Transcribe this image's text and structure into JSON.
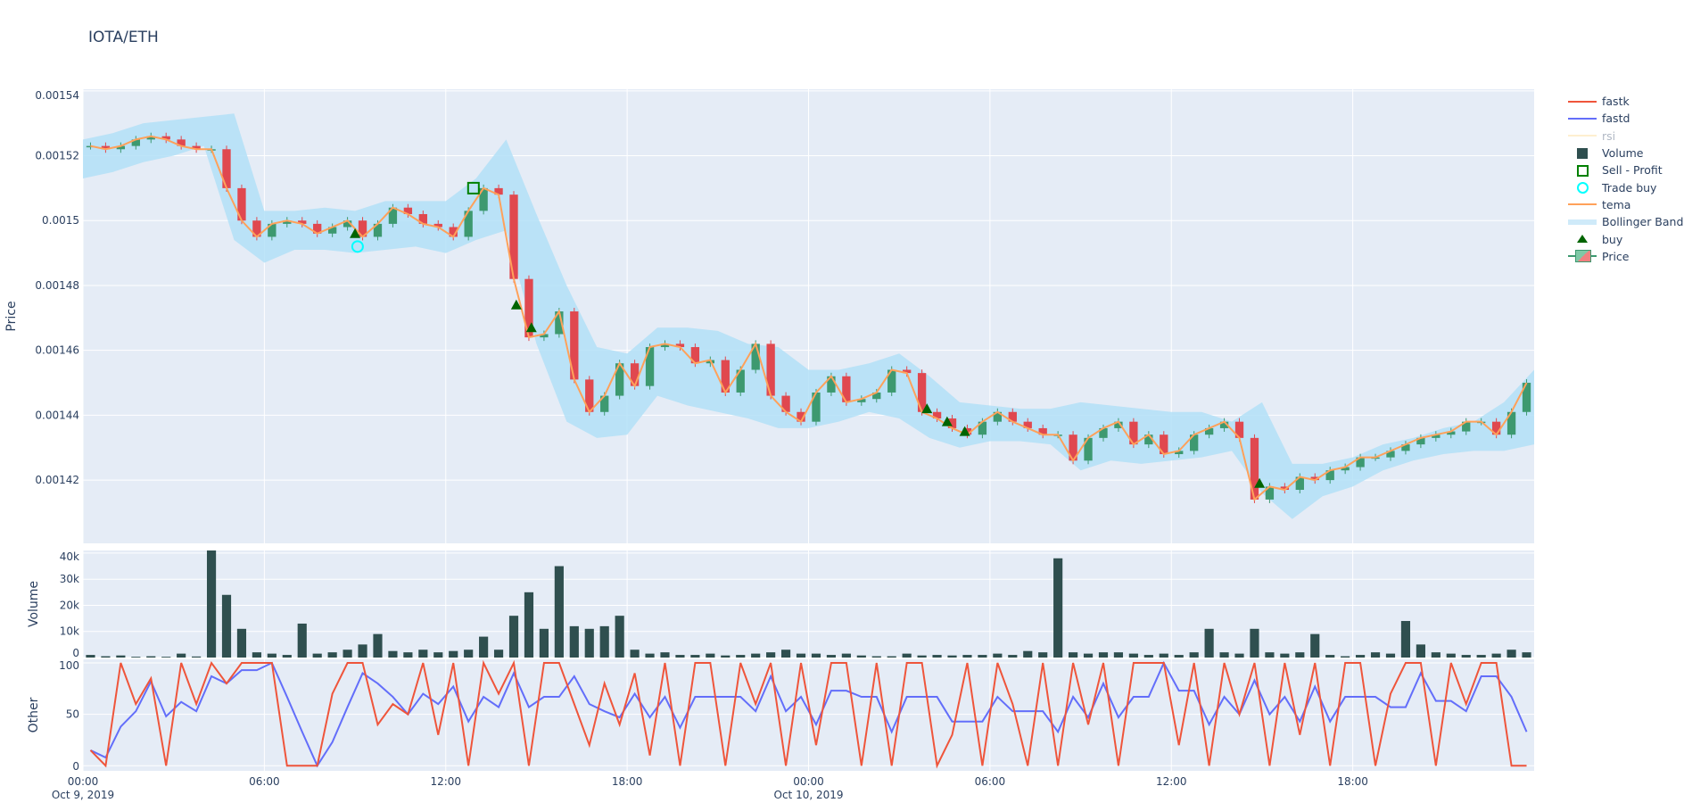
{
  "title": "IOTA/ETH",
  "legend": [
    {
      "label": "fastk",
      "symbol": "line",
      "color": "#ef553b"
    },
    {
      "label": "fastd",
      "symbol": "line",
      "color": "#636efa"
    },
    {
      "label": "rsi",
      "symbol": "line",
      "color": "#fde5b0",
      "hidden": true
    },
    {
      "label": "Volume",
      "symbol": "square",
      "color": "#2f4f4f"
    },
    {
      "label": "Sell - Profit",
      "symbol": "square-open",
      "color": "#008000"
    },
    {
      "label": "Trade buy",
      "symbol": "circle-open",
      "color": "#00ffff"
    },
    {
      "label": "tema",
      "symbol": "line",
      "color": "#ffa15a"
    },
    {
      "label": "Bollinger Band",
      "symbol": "band",
      "color": "#b3e0f7"
    },
    {
      "label": "buy",
      "symbol": "triangle-up",
      "color": "#006400"
    },
    {
      "label": "Price",
      "symbol": "candle",
      "color": "#3d9970"
    }
  ],
  "chart_data": [
    {
      "type": "candlestick",
      "ylabel": "Price",
      "ylim": [
        0.0014005,
        0.0015405
      ],
      "yticks": [
        "0.00142",
        "0.00144",
        "0.00146",
        "0.00148",
        "0.0015",
        "0.00152",
        "0.00154"
      ],
      "x_start": "2019-10-09 00:00",
      "x_step_minutes": 30,
      "grid": true,
      "colors": {
        "increasing": "#3d9970",
        "decreasing": "#e0484f",
        "tema": "#ffa15a",
        "band": "#b3e0f7"
      },
      "close": [
        0.001523,
        0.001522,
        0.001523,
        0.001525,
        0.001526,
        0.001525,
        0.001523,
        0.001522,
        0.001522,
        0.00151,
        0.0015,
        0.001495,
        0.001499,
        0.0015,
        0.001499,
        0.001496,
        0.001498,
        0.0015,
        0.001495,
        0.001499,
        0.001504,
        0.001502,
        0.001499,
        0.001498,
        0.001495,
        0.001503,
        0.00151,
        0.001508,
        0.001482,
        0.001464,
        0.001465,
        0.001472,
        0.001451,
        0.001441,
        0.001446,
        0.001456,
        0.001449,
        0.001461,
        0.001462,
        0.001461,
        0.001456,
        0.001457,
        0.001447,
        0.001454,
        0.001462,
        0.001446,
        0.001441,
        0.001438,
        0.001447,
        0.001452,
        0.001444,
        0.001445,
        0.001447,
        0.001454,
        0.001453,
        0.001441,
        0.001439,
        0.001436,
        0.001434,
        0.001438,
        0.001441,
        0.001438,
        0.001436,
        0.001434,
        0.001434,
        0.001426,
        0.001433,
        0.001436,
        0.001438,
        0.001431,
        0.001434,
        0.001428,
        0.001429,
        0.001434,
        0.001436,
        0.001438,
        0.001433,
        0.001414,
        0.001418,
        0.001417,
        0.001421,
        0.00142,
        0.001423,
        0.001424,
        0.001427,
        0.001427,
        0.001429,
        0.001431,
        0.001433,
        0.001434,
        0.001435,
        0.001438,
        0.001438,
        0.001434,
        0.001441,
        0.00145
      ],
      "tema": [
        0.001523,
        0.001522,
        0.001523,
        0.001525,
        0.001526,
        0.001525,
        0.001523,
        0.001522,
        0.001522,
        0.00151,
        0.0015,
        0.001495,
        0.001499,
        0.0015,
        0.001499,
        0.001496,
        0.001498,
        0.0015,
        0.001495,
        0.001499,
        0.001504,
        0.001502,
        0.001499,
        0.001498,
        0.001495,
        0.001503,
        0.00151,
        0.001508,
        0.001482,
        0.001464,
        0.001465,
        0.001472,
        0.001451,
        0.001441,
        0.001446,
        0.001456,
        0.001449,
        0.001461,
        0.001462,
        0.001461,
        0.001456,
        0.001457,
        0.001447,
        0.001454,
        0.001462,
        0.001446,
        0.001441,
        0.001438,
        0.001447,
        0.001452,
        0.001444,
        0.001445,
        0.001447,
        0.001454,
        0.001453,
        0.001441,
        0.001439,
        0.001436,
        0.001434,
        0.001438,
        0.001441,
        0.001438,
        0.001436,
        0.001434,
        0.001434,
        0.001426,
        0.001433,
        0.001436,
        0.001438,
        0.001431,
        0.001434,
        0.001428,
        0.001429,
        0.001434,
        0.001436,
        0.001438,
        0.001433,
        0.001414,
        0.001418,
        0.001417,
        0.001421,
        0.00142,
        0.001423,
        0.001424,
        0.001427,
        0.001427,
        0.001429,
        0.001431,
        0.001433,
        0.001434,
        0.001435,
        0.001438,
        0.001438,
        0.001434,
        0.001441,
        0.00145
      ],
      "bollinger_step_minutes": 60,
      "bb_upper": [
        0.001525,
        0.001527,
        0.00153,
        0.001531,
        0.001532,
        0.001533,
        0.001503,
        0.001503,
        0.001504,
        0.001503,
        0.001506,
        0.001506,
        0.001506,
        0.001513,
        0.001525,
        0.001502,
        0.00148,
        0.001461,
        0.001459,
        0.001467,
        0.001467,
        0.001466,
        0.001462,
        0.001461,
        0.001454,
        0.001454,
        0.001456,
        0.001459,
        0.001452,
        0.001444,
        0.001443,
        0.001442,
        0.001442,
        0.001444,
        0.001443,
        0.001442,
        0.001441,
        0.001441,
        0.001438,
        0.001444,
        0.001425,
        0.001425,
        0.001427,
        0.001431,
        0.001433,
        0.001436,
        0.001438,
        0.001444,
        0.001454
      ],
      "bb_lower": [
        0.001513,
        0.001515,
        0.001518,
        0.00152,
        0.001523,
        0.001494,
        0.001487,
        0.001491,
        0.001491,
        0.00149,
        0.001491,
        0.001492,
        0.00149,
        0.001494,
        0.001497,
        0.001462,
        0.001438,
        0.001433,
        0.001434,
        0.001446,
        0.001443,
        0.001441,
        0.001439,
        0.001436,
        0.001436,
        0.001438,
        0.001441,
        0.001439,
        0.001433,
        0.00143,
        0.001432,
        0.001432,
        0.001431,
        0.001423,
        0.001426,
        0.001425,
        0.001426,
        0.001427,
        0.001429,
        0.001416,
        0.001408,
        0.001415,
        0.001418,
        0.001423,
        0.001426,
        0.001428,
        0.001429,
        0.001429,
        0.001431
      ],
      "buy": [
        {
          "x": "2019-10-09 09:00",
          "y": 0.001496
        },
        {
          "x": "2019-10-09 14:20",
          "y": 0.001474
        },
        {
          "x": "2019-10-09 14:50",
          "y": 0.001467
        },
        {
          "x": "2019-10-10 03:55",
          "y": 0.001442
        },
        {
          "x": "2019-10-10 04:35",
          "y": 0.001438
        },
        {
          "x": "2019-10-10 05:10",
          "y": 0.001435
        },
        {
          "x": "2019-10-10 14:55",
          "y": 0.001419
        }
      ],
      "trade_buy": [
        {
          "x": "2019-10-09 09:05",
          "y": 0.001492
        }
      ],
      "sell_profit": [
        {
          "x": "2019-10-09 12:55",
          "y": 0.00151
        }
      ]
    },
    {
      "type": "bar",
      "ylabel": "Volume",
      "ylim": [
        0,
        41000
      ],
      "yticks": [
        "0",
        "10k",
        "20k",
        "30k",
        "40k"
      ],
      "color": "#2f4f4f",
      "values": [
        1000,
        500,
        800,
        300,
        500,
        300,
        1500,
        400,
        41000,
        24000,
        11000,
        2000,
        1500,
        1000,
        13000,
        1500,
        2000,
        3000,
        5000,
        9000,
        2500,
        2000,
        3000,
        2000,
        2500,
        3000,
        8000,
        3000,
        16000,
        25000,
        11000,
        35000,
        12000,
        11000,
        12000,
        16000,
        3000,
        1500,
        2000,
        1000,
        1000,
        1500,
        800,
        1000,
        1500,
        2000,
        3000,
        1500,
        1500,
        1000,
        1500,
        800,
        500,
        500,
        1500,
        800,
        1000,
        800,
        1000,
        1000,
        1500,
        1000,
        2500,
        2000,
        38000,
        2000,
        1500,
        2000,
        2000,
        1500,
        1000,
        1500,
        1000,
        2000,
        11000,
        2000,
        1500,
        11000,
        2000,
        1500,
        2000,
        9000,
        1000,
        500,
        1000,
        2000,
        1500,
        14000,
        5000,
        2000,
        1500,
        1000,
        1000,
        1500,
        3000,
        2000
      ]
    },
    {
      "type": "line",
      "ylabel": "Other",
      "ylim": [
        -5,
        103.5
      ],
      "yticks": [
        "0",
        "50",
        "100"
      ],
      "series": [
        {
          "name": "fastk",
          "color": "#ef553b",
          "values": [
            15,
            0,
            100,
            60,
            85,
            0,
            100,
            60,
            100,
            80,
            100,
            100,
            100,
            0,
            0,
            0,
            70,
            100,
            100,
            40,
            60,
            50,
            100,
            30,
            100,
            0,
            100,
            70,
            100,
            0,
            100,
            100,
            60,
            20,
            80,
            40,
            90,
            10,
            100,
            0,
            100,
            100,
            0,
            100,
            60,
            100,
            0,
            100,
            20,
            100,
            100,
            0,
            100,
            0,
            100,
            100,
            0,
            30,
            100,
            0,
            100,
            60,
            0,
            100,
            0,
            100,
            40,
            100,
            0,
            100,
            100,
            100,
            20,
            100,
            0,
            100,
            50,
            100,
            0,
            100,
            30,
            100,
            0,
            100,
            100,
            0,
            70,
            100,
            100,
            0,
            100,
            60,
            100,
            100,
            0,
            0
          ]
        },
        {
          "name": "fastd",
          "color": "#636efa",
          "values": [
            15,
            8,
            38,
            53,
            82,
            48,
            62,
            53,
            87,
            80,
            93,
            93,
            100,
            67,
            33,
            0,
            23,
            57,
            90,
            80,
            67,
            50,
            70,
            60,
            77,
            43,
            67,
            57,
            90,
            57,
            67,
            67,
            87,
            60,
            53,
            47,
            70,
            47,
            67,
            37,
            67,
            67,
            67,
            67,
            53,
            87,
            53,
            67,
            40,
            73,
            73,
            67,
            67,
            33,
            67,
            67,
            67,
            43,
            43,
            43,
            67,
            53,
            53,
            53,
            33,
            67,
            47,
            80,
            47,
            67,
            67,
            100,
            73,
            73,
            40,
            67,
            50,
            83,
            50,
            67,
            43,
            77,
            43,
            67,
            67,
            67,
            57,
            57,
            90,
            63,
            63,
            53,
            87,
            87,
            67,
            33
          ]
        }
      ]
    }
  ],
  "xaxis": {
    "ticks": [
      "00:00",
      "06:00",
      "12:00",
      "18:00",
      "00:00",
      "06:00",
      "12:00",
      "18:00"
    ],
    "dates": [
      "Oct 9, 2019",
      "",
      "",
      "",
      "Oct 10, 2019",
      "",
      "",
      ""
    ]
  }
}
